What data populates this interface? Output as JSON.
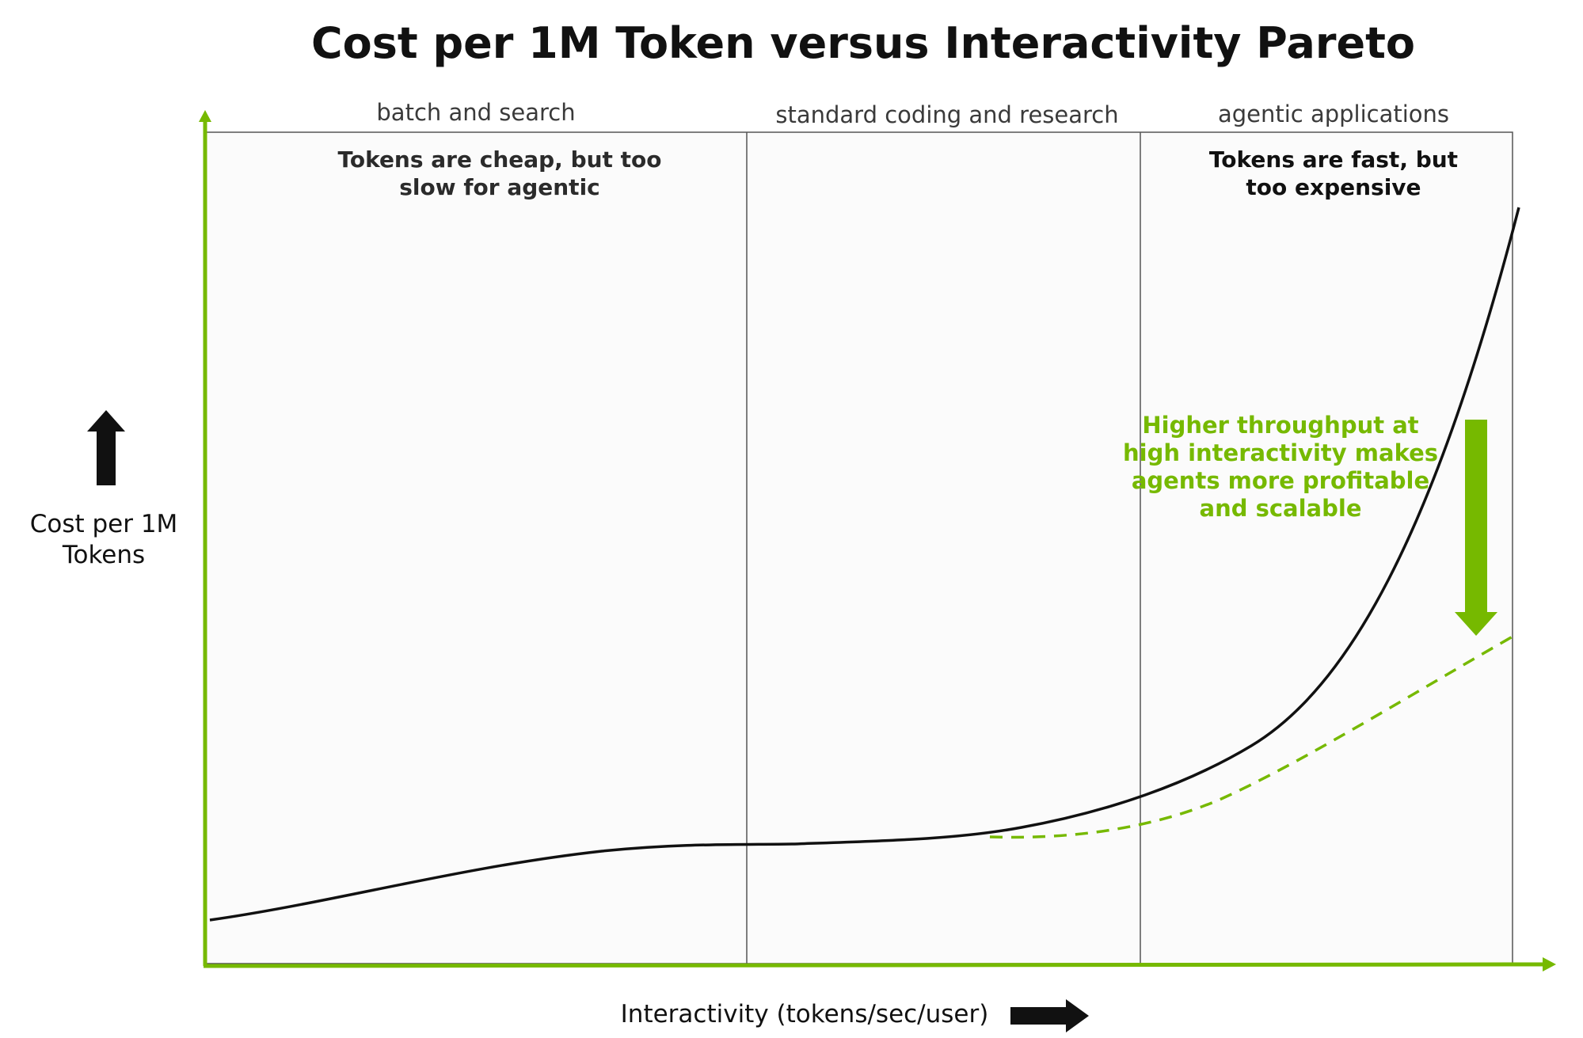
{
  "title": "Cost per 1M Token versus Interactivity Pareto",
  "regions": [
    {
      "label": "batch and search",
      "callout": [
        "Tokens are cheap, but too",
        "slow for agentic"
      ]
    },
    {
      "label": "standard coding and research",
      "callout": []
    },
    {
      "label": "agentic applications",
      "callout": [
        "Tokens are fast, but",
        "too expensive"
      ]
    }
  ],
  "annotation": {
    "lines": [
      "Higher throughput at",
      "high interactivity makes",
      "agents more profitable",
      "and scalable"
    ]
  },
  "axes": {
    "x_label": "Interactivity (tokens/sec/user)",
    "y_label_lines": [
      "Cost per 1M",
      "Tokens"
    ]
  },
  "colors": {
    "accent": "#76b900",
    "curve": "#111111",
    "panel": "#fbfbfb",
    "divider": "#555555"
  },
  "icons": {
    "y_arrow": "arrow-up-icon",
    "x_arrow": "arrow-right-icon",
    "reduction_arrow": "arrow-down-icon"
  }
}
